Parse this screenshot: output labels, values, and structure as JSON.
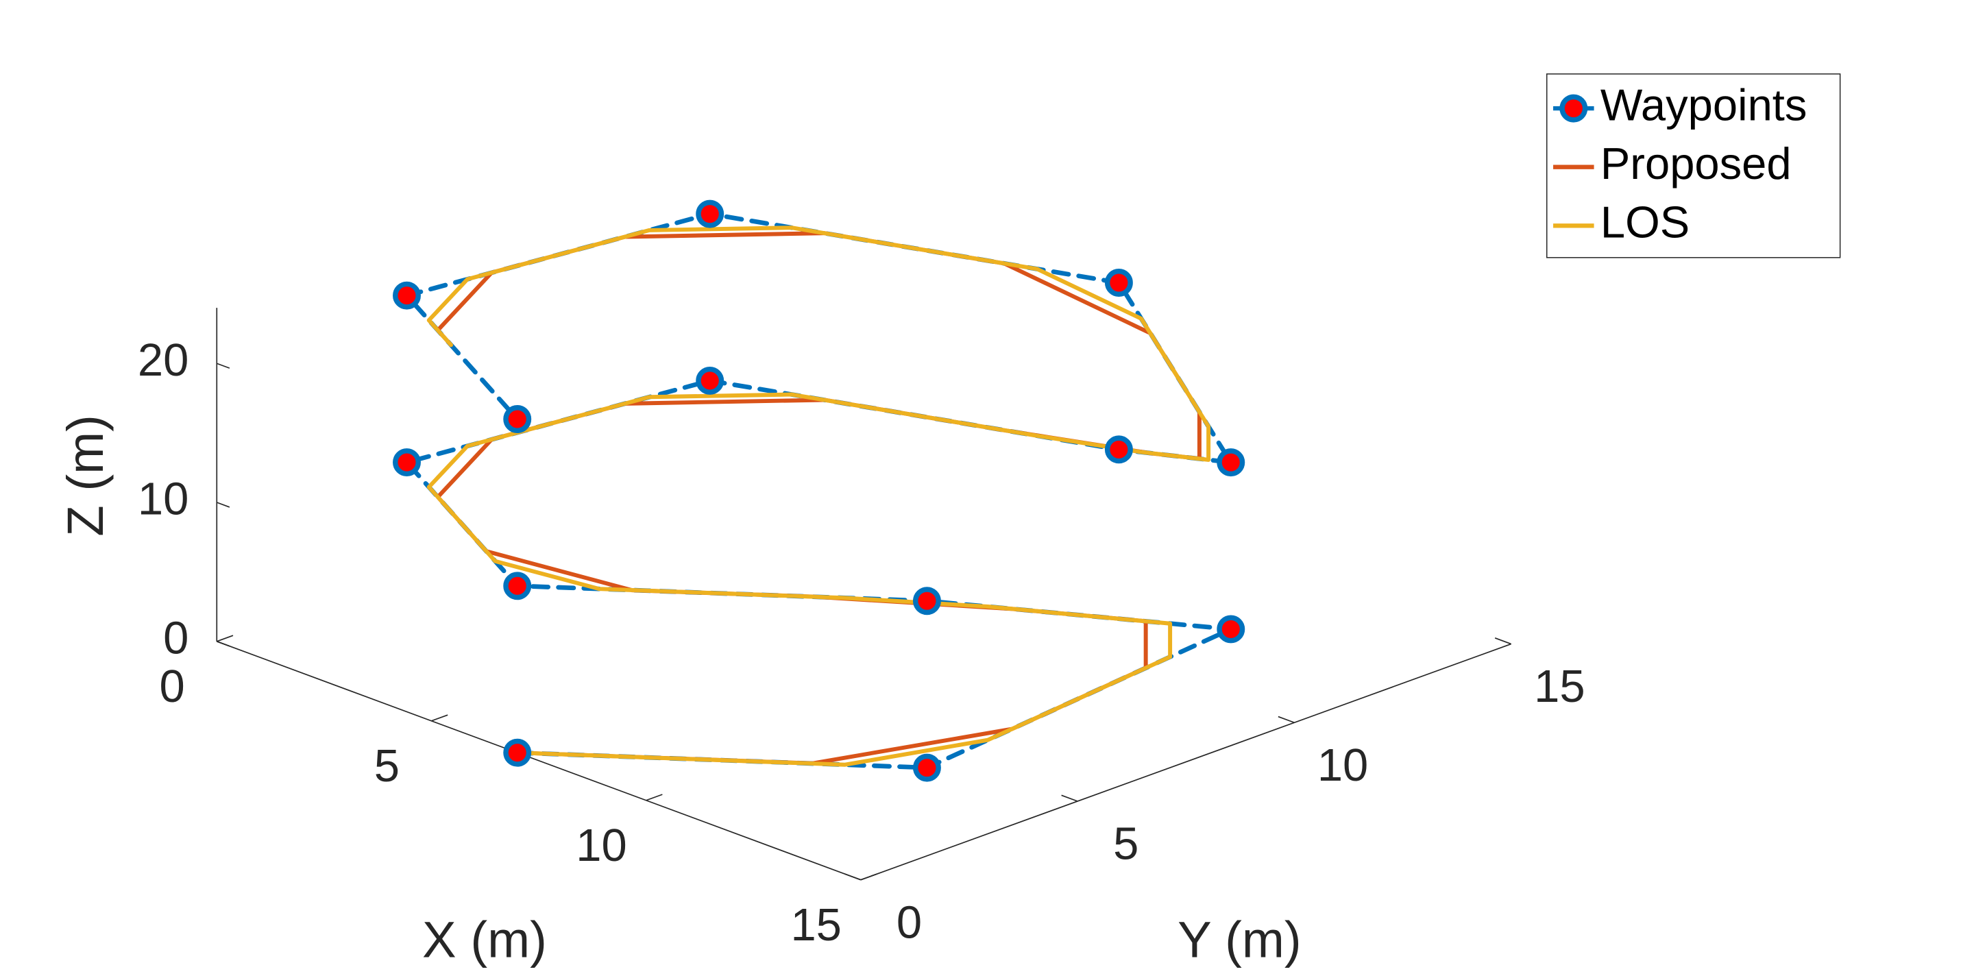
{
  "chart_data": {
    "type": "line3d",
    "xlabel": "X (m)",
    "ylabel": "Y (m)",
    "zlabel": "Z (m)",
    "xlim": [
      0,
      15
    ],
    "ylim": [
      0,
      15
    ],
    "zlim": [
      0,
      24
    ],
    "xticks": [
      0,
      5,
      10,
      15
    ],
    "yticks": [
      0,
      5,
      10,
      15
    ],
    "zticks": [
      0,
      10,
      20
    ],
    "grid": false,
    "legend": "upper right",
    "series": [
      {
        "name": "Waypoints",
        "color": "#0072bd",
        "line_style": "dashed",
        "marker": "circle",
        "marker_color": "#ff0000",
        "x": [
          7,
          12.2,
          11.3,
          12.2,
          7,
          1.8,
          2.7,
          9.6,
          11.3,
          9.6,
          2.7,
          1.8,
          7
        ],
        "y": [
          0,
          4.3,
          12.2,
          4.3,
          0,
          2.6,
          8.7,
          11.3,
          12.2,
          11.3,
          8.7,
          2.6,
          0
        ],
        "z": [
          0,
          0,
          0,
          12,
          12,
          12,
          12,
          12,
          12,
          24,
          24,
          24,
          24
        ]
      },
      {
        "name": "Proposed",
        "color": "#d95319",
        "line_style": "solid",
        "x": [
          7,
          10.74,
          11.95,
          11.55,
          11.55,
          11.95,
          10.74,
          8.46,
          5.54,
          3.26,
          2.05,
          2.45,
          4.63,
          7.67,
          10.08,
          10.82,
          10.82,
          10.08,
          7.67,
          4.63,
          2.45,
          2.05,
          3.26,
          3.88
        ],
        "y": [
          0,
          3.1,
          6.51,
          9.99,
          9.99,
          6.51,
          3.1,
          1.2,
          0.73,
          1.87,
          4.31,
          6.99,
          9.43,
          10.57,
          11.55,
          11.95,
          11.95,
          11.55,
          10.57,
          9.43,
          6.99,
          4.31,
          1.87,
          1.56
        ],
        "z": [
          0,
          0,
          0,
          0,
          3.36,
          8.64,
          12,
          12,
          12,
          12,
          12,
          12,
          12,
          12,
          12,
          12,
          15.36,
          20.64,
          24,
          24,
          24,
          24,
          24,
          24
        ]
      },
      {
        "name": "LOS",
        "color": "#edb120",
        "line_style": "solid",
        "x": [
          7,
          11.16,
          12.02,
          11.48,
          11.48,
          12.02,
          11.16,
          8.04,
          5.96,
          2.84,
          1.98,
          2.52,
          4.08,
          8.22,
          9.94,
          10.96,
          10.96,
          9.94,
          8.22,
          4.08,
          2.52,
          1.98,
          2.84,
          3.88
        ],
        "y": [
          0,
          3.44,
          5.88,
          10.62,
          10.62,
          5.88,
          3.44,
          0.86,
          0.52,
          2.08,
          3.82,
          7.48,
          9.22,
          10.78,
          11.48,
          12.02,
          12.02,
          11.48,
          10.78,
          9.22,
          7.48,
          3.82,
          2.08,
          1.56
        ],
        "z": [
          0,
          0,
          0,
          0,
          2.4,
          9.6,
          12,
          12,
          12,
          12,
          12,
          12,
          12,
          12,
          12,
          12,
          14.4,
          21.6,
          24,
          24,
          24,
          24,
          24,
          24
        ]
      }
    ]
  }
}
